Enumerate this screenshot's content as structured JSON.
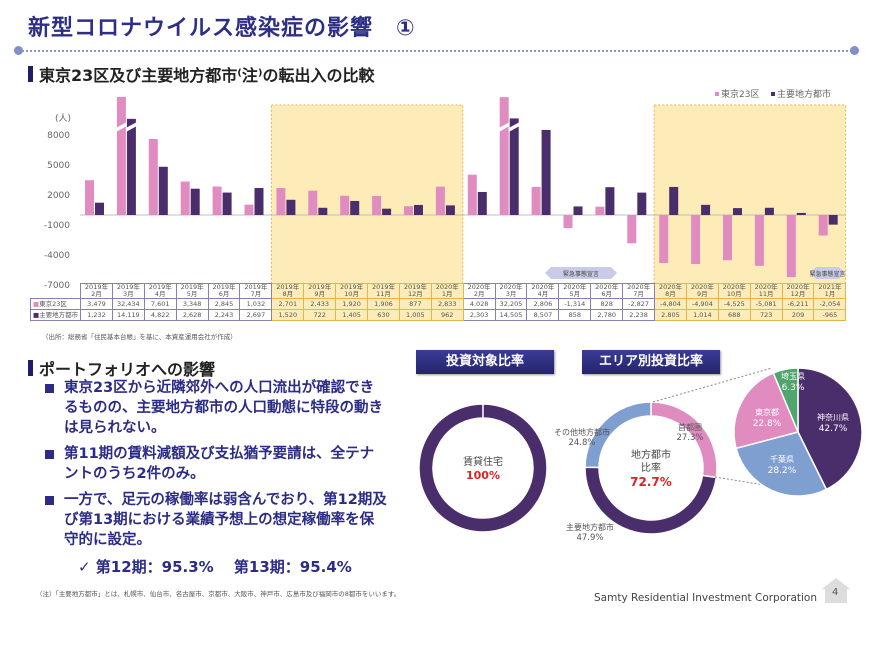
{
  "title": "新型コロナウイルス感染症の影響　①",
  "section1": "東京23区及び主要地方都市⁽注⁾の転出入の比較",
  "chart_data": {
    "type": "bar",
    "ylabel": "(人)",
    "yticks": [
      8000,
      5000,
      2000,
      -1000,
      -4000,
      -7000
    ],
    "ylim": [
      -7000,
      8000
    ],
    "axis_break": true,
    "categories": [
      [
        "2019年",
        "2月"
      ],
      [
        "2019年",
        "3月"
      ],
      [
        "2019年",
        "4月"
      ],
      [
        "2019年",
        "5月"
      ],
      [
        "2019年",
        "6月"
      ],
      [
        "2019年",
        "7月"
      ],
      [
        "2019年",
        "8月"
      ],
      [
        "2019年",
        "9月"
      ],
      [
        "2019年",
        "10月"
      ],
      [
        "2019年",
        "11月"
      ],
      [
        "2019年",
        "12月"
      ],
      [
        "2020年",
        "1月"
      ],
      [
        "2020年",
        "2月"
      ],
      [
        "2020年",
        "3月"
      ],
      [
        "2020年",
        "4月"
      ],
      [
        "2020年",
        "5月"
      ],
      [
        "2020年",
        "6月"
      ],
      [
        "2020年",
        "7月"
      ],
      [
        "2020年",
        "8月"
      ],
      [
        "2020年",
        "9月"
      ],
      [
        "2020年",
        "10月"
      ],
      [
        "2020年",
        "11月"
      ],
      [
        "2020年",
        "12月"
      ],
      [
        "2021年",
        "1月"
      ]
    ],
    "series": [
      {
        "name": "東京23区",
        "color": "#e08cc0",
        "values": [
          3479,
          32434,
          7601,
          3348,
          2845,
          1032,
          2701,
          2433,
          1920,
          1906,
          877,
          2833,
          4028,
          32205,
          2806,
          -1314,
          828,
          -2827,
          -4804,
          -4904,
          -4525,
          -5081,
          -6211,
          -2054
        ]
      },
      {
        "name": "主要地方都市",
        "color": "#4a2d6b",
        "values": [
          1232,
          14119,
          4822,
          2628,
          2243,
          2697,
          1520,
          722,
          1405,
          630,
          1005,
          962,
          2303,
          14505,
          8507,
          858,
          2780,
          2238,
          2805,
          1014,
          688,
          723,
          209,
          -965
        ]
      }
    ],
    "highlight_ranges": [
      [
        "2019年8月",
        "2020年1月"
      ],
      [
        "2020年8月",
        "2021年1月"
      ]
    ],
    "highlight_color": "#fdecb8",
    "annotations": [
      "緊急事態宣言",
      "緊急事態宣言"
    ],
    "legend": "top-right"
  },
  "source": "（出所：総務省「住民基本台帳」を基に、本資産運用会社が作成）",
  "section2": "ポートフォリオへの影響",
  "bullets": [
    "東京23区から近隣郊外への人口流出が確認できるものの、主要地方都市の人口動態に特段の動きは見られない。",
    "第11期の賃料減額及び支払猶予要請は、全テナントのうち2件のみ。",
    "一方で、足元の稼働率は弱含んでおり、第12期及び第13期における業績予想上の想定稼働率を保守的に設定。"
  ],
  "rates": "✓  第12期：95.3%　 第13期：95.4%",
  "note": "（注）「主要地方都市」とは、札幌市、仙台市、名古屋市、京都市、大阪市、神戸市、広島市及び福岡市の8都市をいいます。",
  "pie1": {
    "header": "投資対象比率",
    "label": "賃貸住宅",
    "value": "100%",
    "color": "#4a2d6b"
  },
  "pie2": {
    "header": "エリア別投資比率",
    "center_label1": "地方都市",
    "center_label2": "比率",
    "center_value": "72.7%",
    "slices": [
      {
        "name": "首都圏",
        "value": 27.3,
        "color": "#e08cc0"
      },
      {
        "name": "主要地方都市",
        "value": 47.9,
        "color": "#4a2d6b"
      },
      {
        "name": "その他地方都市",
        "value": 24.8,
        "color": "#7f9fd0"
      }
    ]
  },
  "pie3": {
    "slices": [
      {
        "name": "神奈川県",
        "value": 42.7,
        "color": "#4a2d6b"
      },
      {
        "name": "千葉県",
        "value": 28.2,
        "color": "#7f9fd0"
      },
      {
        "name": "東京都",
        "value": 22.8,
        "color": "#e08cc0"
      },
      {
        "name": "埼玉県",
        "value": 6.3,
        "color": "#4fa56b"
      }
    ]
  },
  "footer": {
    "company": "Samty Residential Investment Corporation",
    "page": "4"
  }
}
